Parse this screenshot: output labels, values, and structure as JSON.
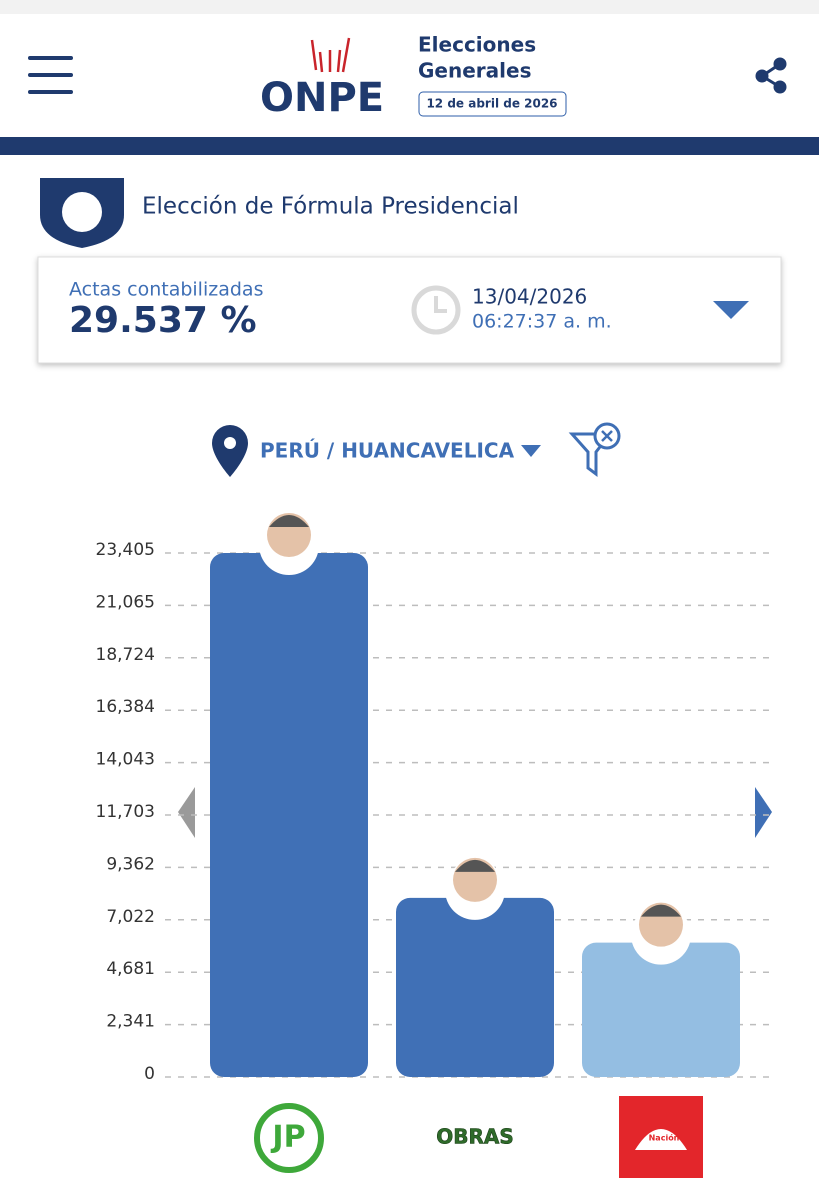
{
  "header": {
    "logo": "ONPE",
    "line1": "Elecciones",
    "line2": "Generales",
    "date": "12 de abril de 2026"
  },
  "section_title": "Elección de Fórmula Presidencial",
  "status": {
    "label": "Actas contabilizadas",
    "percent": "29.537 %",
    "date": "13/04/2026",
    "time": "06:27:37 a. m."
  },
  "location": "PERÚ / HUANCAVELICA",
  "chart_data": {
    "type": "bar",
    "categories": [
      "JP",
      "OBRAS",
      "Nación"
    ],
    "series": [
      {
        "values": [
          23405,
          8000,
          6000
        ],
        "colors": [
          "#4070b6",
          "#4070b6",
          "#94bee2"
        ]
      }
    ],
    "ylim": [
      0,
      23405
    ],
    "yticks": [
      0,
      {
        "value": 2341,
        "label": "2,341"
      },
      {
        "value": 4681,
        "label": "4,681"
      },
      {
        "value": 7022,
        "label": "7,022"
      },
      {
        "value": 9362,
        "label": "9,362"
      },
      {
        "value": 11703,
        "label": "11,703"
      },
      {
        "value": 14043,
        "label": "14,043"
      },
      {
        "value": 16384,
        "label": "16,384"
      },
      {
        "value": 18724,
        "label": "18,724"
      },
      {
        "value": 21065,
        "label": "21,065"
      },
      {
        "value": 23405,
        "label": "23,405"
      }
    ],
    "grid": true
  }
}
